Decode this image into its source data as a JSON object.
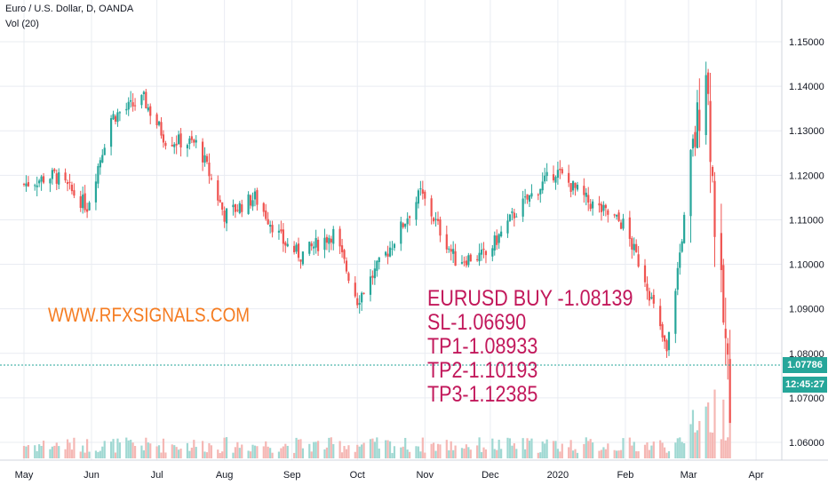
{
  "header": {
    "title": "Euro / U.S. Dollar, D, OANDA",
    "volume_label": "Vol (20)"
  },
  "colors": {
    "up": "#26a69a",
    "down": "#ef5350",
    "up_volume": "#9fd8d2",
    "down_volume": "#f5b7b4",
    "grid": "#e9ecf2",
    "axis_text": "#131722",
    "promo": "#f57c21",
    "signal": "#c2185b"
  },
  "promo_text": "WWW.RFXSIGNALS.COM",
  "signal_text": [
    "EURUSD BUY -1.08139",
    "SL-1.06690",
    "TP1-1.08933",
    "TP2-1.10193",
    "TP3-1.12385"
  ],
  "last_price": "1.07786",
  "countdown": "12:45:27",
  "chart_data": {
    "type": "candlestick",
    "ylim": [
      1.055,
      1.155
    ],
    "y_ticks": [
      "1.15000",
      "1.14000",
      "1.13000",
      "1.12000",
      "1.11000",
      "1.10000",
      "1.09000",
      "1.08000",
      "1.07000",
      "1.06000"
    ],
    "x_ticks": [
      "May",
      "Jun",
      "Jul",
      "Aug",
      "Sep",
      "Oct",
      "Nov",
      "Dec",
      "2020",
      "Feb",
      "Mar",
      "Apr"
    ],
    "grid": true,
    "close_series": [
      {
        "date": "2019-05-01",
        "close": 1.118
      },
      {
        "date": "2019-05-15",
        "close": 1.12
      },
      {
        "date": "2019-05-30",
        "close": 1.113
      },
      {
        "date": "2019-06-10",
        "close": 1.133
      },
      {
        "date": "2019-06-25",
        "close": 1.137
      },
      {
        "date": "2019-07-05",
        "close": 1.128
      },
      {
        "date": "2019-07-20",
        "close": 1.127
      },
      {
        "date": "2019-08-01",
        "close": 1.111
      },
      {
        "date": "2019-08-15",
        "close": 1.115
      },
      {
        "date": "2019-08-28",
        "close": 1.105
      },
      {
        "date": "2019-09-05",
        "close": 1.102
      },
      {
        "date": "2019-09-20",
        "close": 1.107
      },
      {
        "date": "2019-10-01",
        "close": 1.092
      },
      {
        "date": "2019-10-15",
        "close": 1.103
      },
      {
        "date": "2019-10-30",
        "close": 1.116
      },
      {
        "date": "2019-11-15",
        "close": 1.101
      },
      {
        "date": "2019-11-29",
        "close": 1.102
      },
      {
        "date": "2019-12-13",
        "close": 1.112
      },
      {
        "date": "2019-12-31",
        "close": 1.121
      },
      {
        "date": "2020-01-15",
        "close": 1.114
      },
      {
        "date": "2020-01-31",
        "close": 1.109
      },
      {
        "date": "2020-02-10",
        "close": 1.097
      },
      {
        "date": "2020-02-20",
        "close": 1.08
      },
      {
        "date": "2020-03-03",
        "close": 1.125
      },
      {
        "date": "2020-03-09",
        "close": 1.146
      },
      {
        "date": "2020-03-13",
        "close": 1.11
      },
      {
        "date": "2020-03-20",
        "close": 1.07
      }
    ]
  }
}
